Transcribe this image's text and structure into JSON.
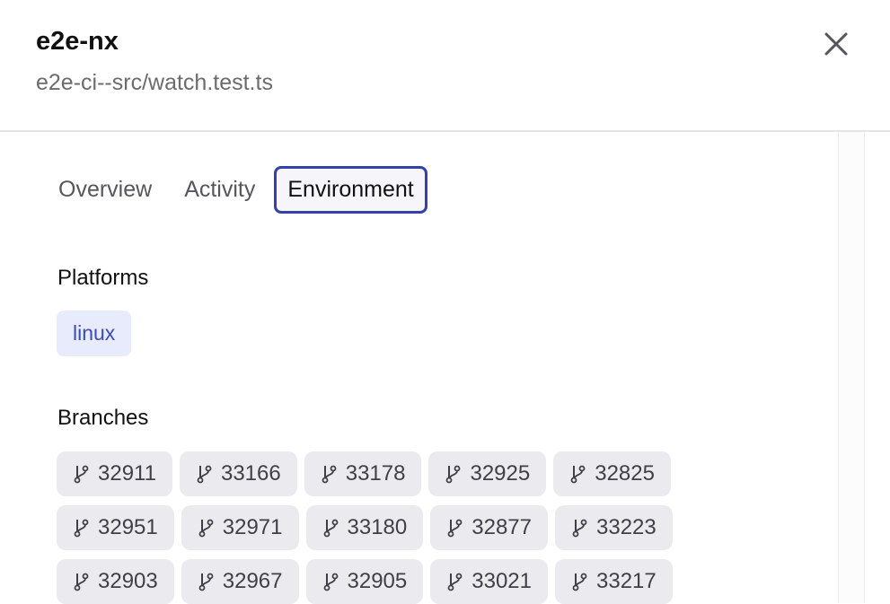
{
  "header": {
    "title": "e2e-nx",
    "subtitle": "e2e-ci--src/watch.test.ts",
    "close_icon": "close-icon"
  },
  "tabs": [
    {
      "label": "Overview",
      "active": false
    },
    {
      "label": "Activity",
      "active": false
    },
    {
      "label": "Environment",
      "active": true
    }
  ],
  "platforms": {
    "heading": "Platforms",
    "items": [
      "linux"
    ]
  },
  "branches": {
    "heading": "Branches",
    "icon": "git-branch-icon",
    "items": [
      "32911",
      "33166",
      "33178",
      "32925",
      "32825",
      "32951",
      "32971",
      "33180",
      "32877",
      "33223",
      "32903",
      "32967",
      "32905",
      "33021",
      "33217"
    ]
  },
  "colors": {
    "accent": "#3341a8",
    "badge_bg": "#e8ebfb",
    "chip_bg": "#ebebef"
  }
}
